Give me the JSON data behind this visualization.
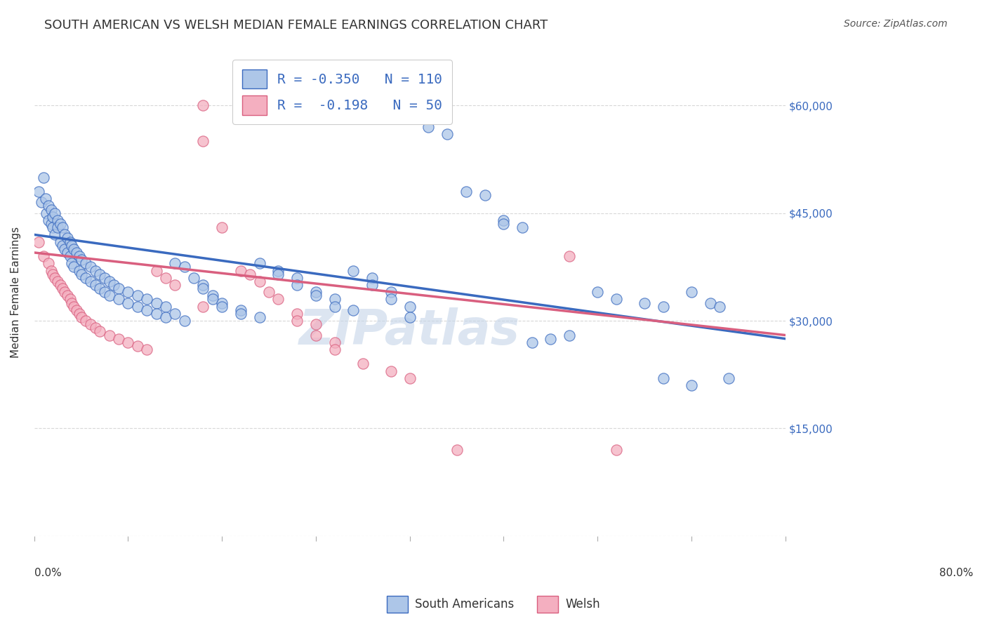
{
  "title": "SOUTH AMERICAN VS WELSH MEDIAN FEMALE EARNINGS CORRELATION CHART",
  "source": "Source: ZipAtlas.com",
  "ylabel": "Median Female Earnings",
  "watermark": "ZIPatlas",
  "legend": {
    "blue_R": "-0.350",
    "blue_N": "110",
    "pink_R": "-0.198",
    "pink_N": "50"
  },
  "legend_labels": [
    "South Americans",
    "Welsh"
  ],
  "y_ticks": [
    0,
    15000,
    30000,
    45000,
    60000
  ],
  "y_tick_labels": [
    "",
    "$15,000",
    "$30,000",
    "$45,000",
    "$60,000"
  ],
  "x_range": [
    0.0,
    0.8
  ],
  "y_range": [
    0,
    68000
  ],
  "blue_color": "#adc6e8",
  "pink_color": "#f4afc0",
  "blue_line_color": "#3a6abf",
  "pink_line_color": "#d95f7f",
  "blue_scatter": [
    [
      0.005,
      48000
    ],
    [
      0.008,
      46500
    ],
    [
      0.01,
      50000
    ],
    [
      0.012,
      47000
    ],
    [
      0.013,
      45000
    ],
    [
      0.015,
      46000
    ],
    [
      0.015,
      44000
    ],
    [
      0.018,
      45500
    ],
    [
      0.018,
      43500
    ],
    [
      0.02,
      44500
    ],
    [
      0.02,
      43000
    ],
    [
      0.022,
      45000
    ],
    [
      0.022,
      42000
    ],
    [
      0.025,
      44000
    ],
    [
      0.025,
      43000
    ],
    [
      0.028,
      43500
    ],
    [
      0.028,
      41000
    ],
    [
      0.03,
      43000
    ],
    [
      0.03,
      40500
    ],
    [
      0.032,
      42000
    ],
    [
      0.032,
      40000
    ],
    [
      0.035,
      41500
    ],
    [
      0.035,
      39500
    ],
    [
      0.038,
      41000
    ],
    [
      0.038,
      39000
    ],
    [
      0.04,
      40500
    ],
    [
      0.04,
      38000
    ],
    [
      0.042,
      40000
    ],
    [
      0.042,
      37500
    ],
    [
      0.045,
      39500
    ],
    [
      0.048,
      39000
    ],
    [
      0.048,
      37000
    ],
    [
      0.05,
      38500
    ],
    [
      0.05,
      36500
    ],
    [
      0.055,
      38000
    ],
    [
      0.055,
      36000
    ],
    [
      0.06,
      37500
    ],
    [
      0.06,
      35500
    ],
    [
      0.065,
      37000
    ],
    [
      0.065,
      35000
    ],
    [
      0.07,
      36500
    ],
    [
      0.07,
      34500
    ],
    [
      0.075,
      36000
    ],
    [
      0.075,
      34000
    ],
    [
      0.08,
      35500
    ],
    [
      0.08,
      33500
    ],
    [
      0.085,
      35000
    ],
    [
      0.09,
      34500
    ],
    [
      0.09,
      33000
    ],
    [
      0.1,
      34000
    ],
    [
      0.1,
      32500
    ],
    [
      0.11,
      33500
    ],
    [
      0.11,
      32000
    ],
    [
      0.12,
      33000
    ],
    [
      0.12,
      31500
    ],
    [
      0.13,
      32500
    ],
    [
      0.13,
      31000
    ],
    [
      0.14,
      32000
    ],
    [
      0.14,
      30500
    ],
    [
      0.15,
      38000
    ],
    [
      0.15,
      31000
    ],
    [
      0.16,
      37500
    ],
    [
      0.16,
      30000
    ],
    [
      0.17,
      36000
    ],
    [
      0.18,
      35000
    ],
    [
      0.18,
      34500
    ],
    [
      0.19,
      33500
    ],
    [
      0.19,
      33000
    ],
    [
      0.2,
      32500
    ],
    [
      0.2,
      32000
    ],
    [
      0.22,
      31500
    ],
    [
      0.22,
      31000
    ],
    [
      0.24,
      38000
    ],
    [
      0.24,
      30500
    ],
    [
      0.26,
      37000
    ],
    [
      0.26,
      36500
    ],
    [
      0.28,
      36000
    ],
    [
      0.28,
      35000
    ],
    [
      0.3,
      34000
    ],
    [
      0.3,
      33500
    ],
    [
      0.32,
      33000
    ],
    [
      0.32,
      32000
    ],
    [
      0.34,
      37000
    ],
    [
      0.34,
      31500
    ],
    [
      0.36,
      36000
    ],
    [
      0.36,
      35000
    ],
    [
      0.38,
      34000
    ],
    [
      0.38,
      33000
    ],
    [
      0.4,
      32000
    ],
    [
      0.4,
      30500
    ],
    [
      0.42,
      57000
    ],
    [
      0.44,
      56000
    ],
    [
      0.46,
      48000
    ],
    [
      0.48,
      47500
    ],
    [
      0.5,
      44000
    ],
    [
      0.5,
      43500
    ],
    [
      0.52,
      43000
    ],
    [
      0.53,
      27000
    ],
    [
      0.55,
      27500
    ],
    [
      0.57,
      28000
    ],
    [
      0.6,
      34000
    ],
    [
      0.62,
      33000
    ],
    [
      0.65,
      32500
    ],
    [
      0.67,
      32000
    ],
    [
      0.7,
      34000
    ],
    [
      0.72,
      32500
    ],
    [
      0.73,
      32000
    ],
    [
      0.74,
      22000
    ],
    [
      0.67,
      22000
    ],
    [
      0.7,
      21000
    ]
  ],
  "pink_scatter": [
    [
      0.005,
      41000
    ],
    [
      0.01,
      39000
    ],
    [
      0.015,
      38000
    ],
    [
      0.018,
      37000
    ],
    [
      0.02,
      36500
    ],
    [
      0.022,
      36000
    ],
    [
      0.025,
      35500
    ],
    [
      0.028,
      35000
    ],
    [
      0.03,
      34500
    ],
    [
      0.032,
      34000
    ],
    [
      0.035,
      33500
    ],
    [
      0.038,
      33000
    ],
    [
      0.04,
      32500
    ],
    [
      0.042,
      32000
    ],
    [
      0.045,
      31500
    ],
    [
      0.048,
      31000
    ],
    [
      0.05,
      30500
    ],
    [
      0.055,
      30000
    ],
    [
      0.06,
      29500
    ],
    [
      0.065,
      29000
    ],
    [
      0.07,
      28500
    ],
    [
      0.08,
      28000
    ],
    [
      0.09,
      27500
    ],
    [
      0.1,
      27000
    ],
    [
      0.11,
      26500
    ],
    [
      0.12,
      26000
    ],
    [
      0.13,
      37000
    ],
    [
      0.14,
      36000
    ],
    [
      0.15,
      35000
    ],
    [
      0.18,
      60000
    ],
    [
      0.18,
      55000
    ],
    [
      0.18,
      32000
    ],
    [
      0.2,
      43000
    ],
    [
      0.22,
      37000
    ],
    [
      0.23,
      36500
    ],
    [
      0.24,
      35500
    ],
    [
      0.25,
      34000
    ],
    [
      0.26,
      33000
    ],
    [
      0.28,
      31000
    ],
    [
      0.28,
      30000
    ],
    [
      0.3,
      29500
    ],
    [
      0.3,
      28000
    ],
    [
      0.32,
      27000
    ],
    [
      0.32,
      26000
    ],
    [
      0.35,
      24000
    ],
    [
      0.38,
      23000
    ],
    [
      0.4,
      22000
    ],
    [
      0.45,
      12000
    ],
    [
      0.57,
      39000
    ],
    [
      0.62,
      12000
    ]
  ],
  "blue_line_x": [
    0.0,
    0.8
  ],
  "blue_line_y": [
    42000,
    27500
  ],
  "pink_line_x": [
    0.0,
    0.8
  ],
  "pink_line_y": [
    39500,
    28000
  ],
  "bg_color": "#ffffff",
  "grid_color": "#d8d8d8",
  "right_label_color": "#3a6abf",
  "title_color": "#333333",
  "title_fontsize": 13,
  "source_fontsize": 10,
  "axis_label_fontsize": 11,
  "tick_fontsize": 11,
  "watermark_color": "#c5d5e8",
  "watermark_fontsize": 50
}
